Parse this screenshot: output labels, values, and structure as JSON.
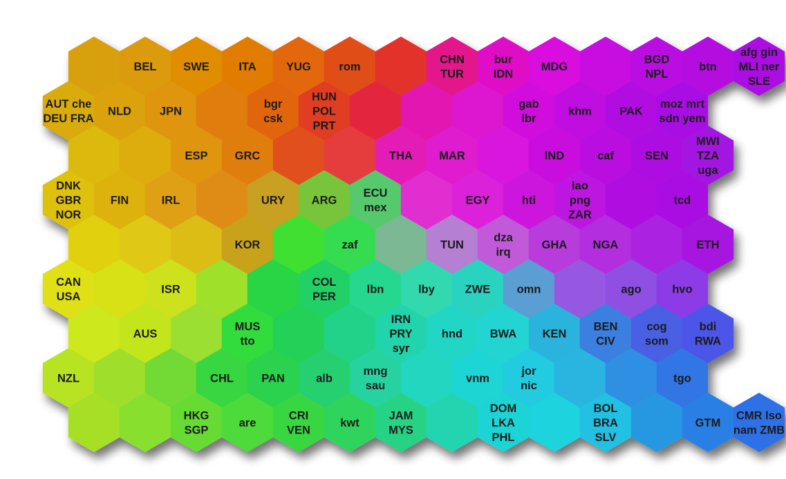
{
  "map": {
    "columns": 14,
    "rows": 9,
    "cells": [
      {
        "r": 0,
        "c": 0,
        "color": "#d9a008",
        "lines": []
      },
      {
        "r": 0,
        "c": 1,
        "color": "#dc9a07",
        "lines": [
          "BEL"
        ]
      },
      {
        "r": 0,
        "c": 2,
        "color": "#e08d05",
        "lines": [
          "SWE"
        ]
      },
      {
        "r": 0,
        "c": 3,
        "color": "#e27c05",
        "lines": [
          "ITA"
        ]
      },
      {
        "r": 0,
        "c": 4,
        "color": "#e3680b",
        "lines": [
          "YUG"
        ]
      },
      {
        "r": 0,
        "c": 5,
        "color": "#e04e15",
        "lines": [
          "rom"
        ]
      },
      {
        "r": 0,
        "c": 6,
        "color": "#e2332a",
        "lines": []
      },
      {
        "r": 0,
        "c": 7,
        "color": "#e3148b",
        "lines": [
          "CHN",
          "TUR"
        ]
      },
      {
        "r": 0,
        "c": 8,
        "color": "#df10c5",
        "lines": [
          "bur",
          "IDN"
        ]
      },
      {
        "r": 0,
        "c": 9,
        "color": "#d90fde",
        "lines": [
          "MDG"
        ]
      },
      {
        "r": 0,
        "c": 10,
        "color": "#c80de0",
        "lines": []
      },
      {
        "r": 0,
        "c": 11,
        "color": "#b90fe1",
        "lines": [
          "BGD",
          "NPL"
        ]
      },
      {
        "r": 0,
        "c": 12,
        "color": "#b30fe0",
        "lines": [
          "btn"
        ]
      },
      {
        "r": 0,
        "c": 13,
        "color": "#ab0fe2",
        "lines": [
          "afg gin",
          "MLI ner",
          "SLE"
        ]
      },
      {
        "r": 1,
        "c": 0,
        "color": "#d9ab0a",
        "lines": [
          "AUT che",
          "DEU FRA"
        ]
      },
      {
        "r": 1,
        "c": 1,
        "color": "#dba20a",
        "lines": [
          "NLD"
        ]
      },
      {
        "r": 1,
        "c": 2,
        "color": "#df9508",
        "lines": [
          "JPN"
        ]
      },
      {
        "r": 1,
        "c": 3,
        "color": "#e07d0a",
        "lines": []
      },
      {
        "r": 1,
        "c": 4,
        "color": "#e0650e",
        "lines": [
          "bgr",
          "csk"
        ]
      },
      {
        "r": 1,
        "c": 5,
        "color": "#e03d22",
        "lines": [
          "HUN",
          "POL",
          "PRT"
        ]
      },
      {
        "r": 1,
        "c": 6,
        "color": "#e3253c",
        "lines": []
      },
      {
        "r": 1,
        "c": 7,
        "color": "#e315b2",
        "lines": []
      },
      {
        "r": 1,
        "c": 8,
        "color": "#dd12cf",
        "lines": []
      },
      {
        "r": 1,
        "c": 9,
        "color": "#d010dd",
        "lines": [
          "gab",
          "lbr"
        ]
      },
      {
        "r": 1,
        "c": 10,
        "color": "#c00ee0",
        "lines": [
          "khm"
        ]
      },
      {
        "r": 1,
        "c": 11,
        "color": "#b20fe0",
        "lines": [
          "PAK"
        ]
      },
      {
        "r": 1,
        "c": 12,
        "color": "#a80fe3",
        "lines": [
          "moz mrt",
          "sdn yem"
        ]
      },
      {
        "r": 2,
        "c": 0,
        "color": "#dcb90e",
        "lines": []
      },
      {
        "r": 2,
        "c": 1,
        "color": "#ddac0c",
        "lines": []
      },
      {
        "r": 2,
        "c": 2,
        "color": "#df950b",
        "lines": [
          "ESP"
        ]
      },
      {
        "r": 2,
        "c": 3,
        "color": "#e07e10",
        "lines": [
          "GRC"
        ]
      },
      {
        "r": 2,
        "c": 4,
        "color": "#e04f1c",
        "lines": []
      },
      {
        "r": 2,
        "c": 5,
        "color": "#e53d3c",
        "lines": []
      },
      {
        "r": 2,
        "c": 6,
        "color": "#e41fb6",
        "lines": [
          "THA"
        ]
      },
      {
        "r": 2,
        "c": 7,
        "color": "#df1ace",
        "lines": [
          "MAR"
        ]
      },
      {
        "r": 2,
        "c": 8,
        "color": "#d816dd",
        "lines": []
      },
      {
        "r": 2,
        "c": 9,
        "color": "#c910df",
        "lines": [
          "IND"
        ]
      },
      {
        "r": 2,
        "c": 10,
        "color": "#ba0fe0",
        "lines": [
          "caf"
        ]
      },
      {
        "r": 2,
        "c": 11,
        "color": "#ae11e2",
        "lines": [
          "SEN"
        ]
      },
      {
        "r": 2,
        "c": 12,
        "color": "#a314e2",
        "lines": [
          "MWI",
          "TZA",
          "uga"
        ]
      },
      {
        "r": 3,
        "c": 0,
        "color": "#ddc10f",
        "lines": [
          "DNK",
          "GBR",
          "NOR"
        ]
      },
      {
        "r": 3,
        "c": 1,
        "color": "#ddb20f",
        "lines": [
          "FIN"
        ]
      },
      {
        "r": 3,
        "c": 2,
        "color": "#e0a012",
        "lines": [
          "IRL"
        ]
      },
      {
        "r": 3,
        "c": 3,
        "color": "#df8c14",
        "lines": []
      },
      {
        "r": 3,
        "c": 4,
        "color": "#c8a022",
        "lines": [
          "URY"
        ]
      },
      {
        "r": 3,
        "c": 5,
        "color": "#78c43a",
        "lines": [
          "ARG"
        ]
      },
      {
        "r": 3,
        "c": 6,
        "color": "#55c96c",
        "lines": [
          "ECU",
          "mex"
        ]
      },
      {
        "r": 3,
        "c": 7,
        "color": "#e12fd0",
        "lines": []
      },
      {
        "r": 3,
        "c": 8,
        "color": "#db24da",
        "lines": [
          "EGY"
        ]
      },
      {
        "r": 3,
        "c": 9,
        "color": "#cc17dd",
        "lines": [
          "hti"
        ]
      },
      {
        "r": 3,
        "c": 10,
        "color": "#bd12e0",
        "lines": [
          "lao",
          "png",
          "ZAR"
        ]
      },
      {
        "r": 3,
        "c": 11,
        "color": "#b011e1",
        "lines": []
      },
      {
        "r": 3,
        "c": 12,
        "color": "#a911e1",
        "lines": [
          "tcd"
        ]
      },
      {
        "r": 4,
        "c": 0,
        "color": "#e0d00f",
        "lines": []
      },
      {
        "r": 4,
        "c": 1,
        "color": "#dfc912",
        "lines": []
      },
      {
        "r": 4,
        "c": 2,
        "color": "#dcbd16",
        "lines": []
      },
      {
        "r": 4,
        "c": 3,
        "color": "#c9a21a",
        "lines": [
          "KOR"
        ]
      },
      {
        "r": 4,
        "c": 4,
        "color": "#3fe032",
        "lines": []
      },
      {
        "r": 4,
        "c": 5,
        "color": "#35dc50",
        "lines": [
          "zaf"
        ]
      },
      {
        "r": 4,
        "c": 6,
        "color": "#7bb894",
        "lines": []
      },
      {
        "r": 4,
        "c": 7,
        "color": "#b57fd3",
        "lines": [
          "TUN"
        ]
      },
      {
        "r": 4,
        "c": 8,
        "color": "#c05ad9",
        "lines": [
          "dza",
          "irq"
        ]
      },
      {
        "r": 4,
        "c": 9,
        "color": "#b83adb",
        "lines": [
          "GHA"
        ]
      },
      {
        "r": 4,
        "c": 10,
        "color": "#b22ddf",
        "lines": [
          "NGA"
        ]
      },
      {
        "r": 4,
        "c": 11,
        "color": "#ab21e1",
        "lines": []
      },
      {
        "r": 4,
        "c": 12,
        "color": "#a713e1",
        "lines": [
          "ETH"
        ]
      },
      {
        "r": 5,
        "c": 0,
        "color": "#dfe112",
        "lines": [
          "CAN",
          "USA"
        ]
      },
      {
        "r": 5,
        "c": 1,
        "color": "#d8e017",
        "lines": []
      },
      {
        "r": 5,
        "c": 2,
        "color": "#cde11a",
        "lines": [
          "ISR"
        ]
      },
      {
        "r": 5,
        "c": 3,
        "color": "#9ee02a",
        "lines": []
      },
      {
        "r": 5,
        "c": 4,
        "color": "#2cd545",
        "lines": []
      },
      {
        "r": 5,
        "c": 5,
        "color": "#24d166",
        "lines": [
          "COL",
          "PER"
        ]
      },
      {
        "r": 5,
        "c": 6,
        "color": "#26d790",
        "lines": [
          "lbn"
        ]
      },
      {
        "r": 5,
        "c": 7,
        "color": "#30d8ae",
        "lines": [
          "lby"
        ]
      },
      {
        "r": 5,
        "c": 8,
        "color": "#2cd3c0",
        "lines": [
          "ZWE"
        ]
      },
      {
        "r": 5,
        "c": 9,
        "color": "#5a9ed3",
        "lines": [
          "omn"
        ]
      },
      {
        "r": 5,
        "c": 10,
        "color": "#9659e0",
        "lines": []
      },
      {
        "r": 5,
        "c": 11,
        "color": "#8e4fe2",
        "lines": [
          "ago"
        ]
      },
      {
        "r": 5,
        "c": 12,
        "color": "#8c3ae6",
        "lines": [
          "hvo"
        ]
      },
      {
        "r": 6,
        "c": 0,
        "color": "#cde81a",
        "lines": []
      },
      {
        "r": 6,
        "c": 1,
        "color": "#c2e51f",
        "lines": [
          "AUS"
        ]
      },
      {
        "r": 6,
        "c": 2,
        "color": "#9bdf33",
        "lines": []
      },
      {
        "r": 6,
        "c": 3,
        "color": "#32dc3e",
        "lines": [
          "MUS",
          "tto"
        ]
      },
      {
        "r": 6,
        "c": 4,
        "color": "#22d154",
        "lines": []
      },
      {
        "r": 6,
        "c": 5,
        "color": "#22d289",
        "lines": []
      },
      {
        "r": 6,
        "c": 6,
        "color": "#24d4ab",
        "lines": [
          "IRN",
          "PRY",
          "syr"
        ]
      },
      {
        "r": 6,
        "c": 7,
        "color": "#22d6c6",
        "lines": [
          "hnd"
        ]
      },
      {
        "r": 6,
        "c": 8,
        "color": "#22d5d2",
        "lines": [
          "BWA"
        ]
      },
      {
        "r": 6,
        "c": 9,
        "color": "#2ab3dc",
        "lines": [
          "KEN"
        ]
      },
      {
        "r": 6,
        "c": 10,
        "color": "#3a7fe0",
        "lines": [
          "BEN",
          "CIV"
        ]
      },
      {
        "r": 6,
        "c": 11,
        "color": "#4a5fe4",
        "lines": [
          "cog",
          "som"
        ]
      },
      {
        "r": 6,
        "c": 12,
        "color": "#4b55e7",
        "lines": [
          "bdi",
          "RWA"
        ]
      },
      {
        "r": 7,
        "c": 0,
        "color": "#b7e324",
        "lines": [
          "NZL"
        ]
      },
      {
        "r": 7,
        "c": 1,
        "color": "#9fde2c",
        "lines": []
      },
      {
        "r": 7,
        "c": 2,
        "color": "#72d935",
        "lines": []
      },
      {
        "r": 7,
        "c": 3,
        "color": "#39d640",
        "lines": [
          "CHL"
        ]
      },
      {
        "r": 7,
        "c": 4,
        "color": "#2ad24e",
        "lines": [
          "PAN"
        ]
      },
      {
        "r": 7,
        "c": 5,
        "color": "#26d06f",
        "lines": [
          "alb"
        ]
      },
      {
        "r": 7,
        "c": 6,
        "color": "#27d3a0",
        "lines": [
          "mng",
          "sau"
        ]
      },
      {
        "r": 7,
        "c": 7,
        "color": "#20d6c0",
        "lines": []
      },
      {
        "r": 7,
        "c": 8,
        "color": "#1ed5d4",
        "lines": [
          "vnm"
        ]
      },
      {
        "r": 7,
        "c": 9,
        "color": "#22cbe0",
        "lines": [
          "jor",
          "nic"
        ]
      },
      {
        "r": 7,
        "c": 10,
        "color": "#29b4e0",
        "lines": []
      },
      {
        "r": 7,
        "c": 11,
        "color": "#2f8fe3",
        "lines": []
      },
      {
        "r": 7,
        "c": 12,
        "color": "#3274e5",
        "lines": [
          "tgo"
        ]
      },
      {
        "r": 8,
        "c": 0,
        "color": "#a6e028",
        "lines": []
      },
      {
        "r": 8,
        "c": 1,
        "color": "#88df2e",
        "lines": []
      },
      {
        "r": 8,
        "c": 2,
        "color": "#66db33",
        "lines": [
          "HKG",
          "SGP"
        ]
      },
      {
        "r": 8,
        "c": 3,
        "color": "#4dda3a",
        "lines": [
          "are"
        ]
      },
      {
        "r": 8,
        "c": 4,
        "color": "#37d743",
        "lines": [
          "CRI",
          "VEN"
        ]
      },
      {
        "r": 8,
        "c": 5,
        "color": "#2ed45b",
        "lines": [
          "kwt"
        ]
      },
      {
        "r": 8,
        "c": 6,
        "color": "#28d385",
        "lines": [
          "JAM",
          "MYS"
        ]
      },
      {
        "r": 8,
        "c": 7,
        "color": "#23d5b0",
        "lines": []
      },
      {
        "r": 8,
        "c": 8,
        "color": "#1ed4d3",
        "lines": [
          "DOM",
          "LKA",
          "PHL"
        ]
      },
      {
        "r": 8,
        "c": 9,
        "color": "#1fd3de",
        "lines": []
      },
      {
        "r": 8,
        "c": 10,
        "color": "#22c0e2",
        "lines": [
          "BOL",
          "BRA",
          "SLV"
        ]
      },
      {
        "r": 8,
        "c": 11,
        "color": "#2698e2",
        "lines": []
      },
      {
        "r": 8,
        "c": 12,
        "color": "#2a7fe5",
        "lines": [
          "GTM"
        ]
      },
      {
        "r": 8,
        "c": 13,
        "color": "#2f71e7",
        "lines": [
          "CMR lso",
          "nam ZMB"
        ]
      }
    ]
  }
}
